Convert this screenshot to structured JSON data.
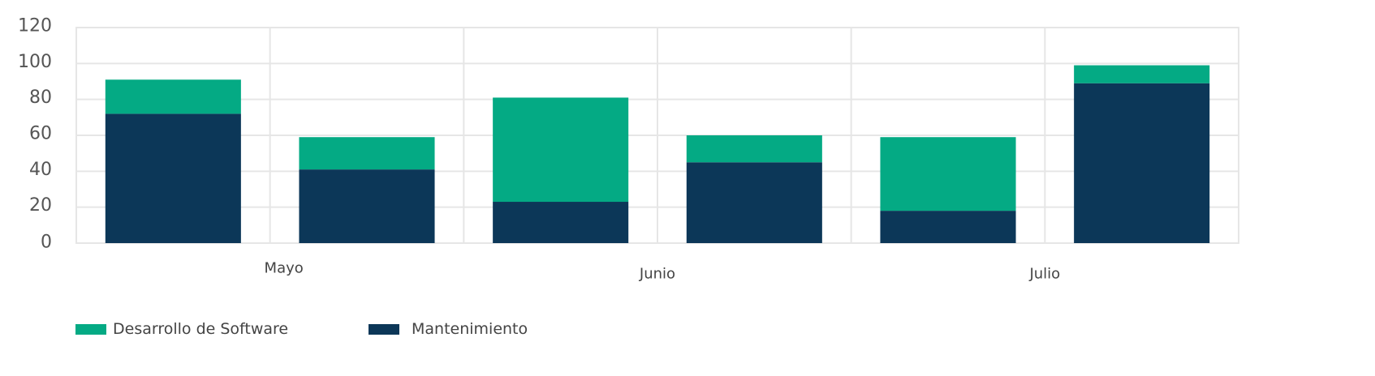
{
  "chart_data": {
    "type": "bar",
    "stacked": true,
    "categories": [
      "Mayo",
      "Junio",
      "Julio"
    ],
    "bars": [
      {
        "category": "Mayo",
        "values": {
          "Mantenimiento": 72,
          "Desarrollo de Software": 19
        }
      },
      {
        "category": "Mayo",
        "values": {
          "Mantenimiento": 41,
          "Desarrollo de Software": 18
        }
      },
      {
        "category": "Junio",
        "values": {
          "Mantenimiento": 23,
          "Desarrollo de Software": 58
        }
      },
      {
        "category": "Junio",
        "values": {
          "Mantenimiento": 45,
          "Desarrollo de Software": 15
        }
      },
      {
        "category": "Julio",
        "values": {
          "Mantenimiento": 18,
          "Desarrollo de Software": 41
        }
      },
      {
        "category": "Julio",
        "values": {
          "Mantenimiento": 89,
          "Desarrollo de Software": 10
        }
      }
    ],
    "series": [
      {
        "name": "Desarrollo de Software",
        "color": "#04aa84"
      },
      {
        "name": "Mantenimiento",
        "color": "#0c3758"
      }
    ],
    "stack_order": [
      "Mantenimiento",
      "Desarrollo de Software"
    ],
    "y_ticks": [
      "0",
      "20",
      "40",
      "60",
      "80",
      "100",
      "120"
    ],
    "ylim": [
      0,
      120
    ],
    "title": "",
    "xlabel": "",
    "ylabel": "",
    "grid": true,
    "legend_position": "bottom-left"
  }
}
